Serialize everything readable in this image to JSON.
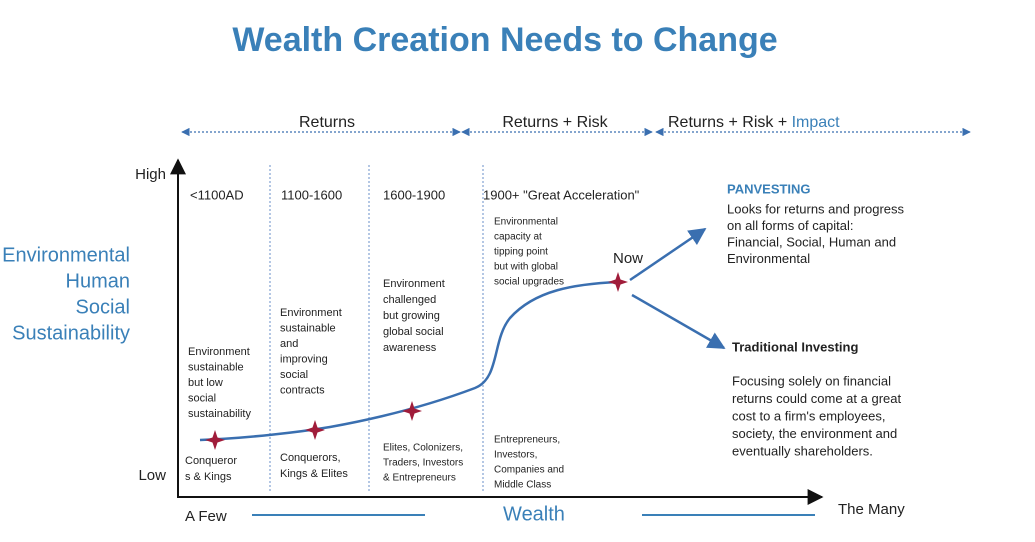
{
  "header": {
    "title": "Wealth Creation Needs to Change"
  },
  "phases": [
    {
      "label": "Returns"
    },
    {
      "label": "Returns + Risk"
    },
    {
      "label": "Returns + Risk +",
      "highlight": "Impact"
    }
  ],
  "y_axis": {
    "high": "High",
    "low": "Low",
    "dimensions": [
      "Environmental",
      "Human",
      "Social",
      "Sustainability"
    ]
  },
  "x_axis": {
    "left": "A Few",
    "center": "Wealth",
    "right": "The Many"
  },
  "eras": [
    {
      "label": "<1100AD",
      "description": [
        "Environment",
        "sustainable",
        "but low",
        "social",
        "sustainability"
      ],
      "actors": [
        "Conqueror",
        "s & Kings"
      ]
    },
    {
      "label": "1100-1600",
      "description": [
        "Environment",
        "sustainable",
        "and",
        "improving",
        "social",
        "contracts"
      ],
      "actors": [
        "Conquerors,",
        "Kings & Elites"
      ]
    },
    {
      "label": "1600-1900",
      "description": [
        "Environment",
        "challenged",
        "but growing",
        "global social",
        "awareness"
      ],
      "actors": [
        "Elites, Colonizers,",
        "Traders, Investors",
        "& Entrepreneurs"
      ]
    },
    {
      "label": "1900+  \"Great Acceleration\"",
      "description": [
        "Environmental",
        "capacity at",
        "tipping point",
        "but with global",
        "social upgrades"
      ],
      "actors": [
        "Entrepreneurs,",
        "Investors,",
        "Companies and",
        "Middle Class"
      ]
    }
  ],
  "now": "Now",
  "panvesting": {
    "title": "PANVESTING",
    "lines": [
      "Looks for returns and progress",
      "on all forms of capital:",
      "Financial, Social, Human and",
      "Environmental"
    ]
  },
  "traditional": {
    "title": "Traditional Investing",
    "lines": [
      "Focusing solely on financial",
      "returns could come at a great",
      "cost to a firm's employees,",
      "society, the environment and",
      "eventually shareholders."
    ]
  }
}
